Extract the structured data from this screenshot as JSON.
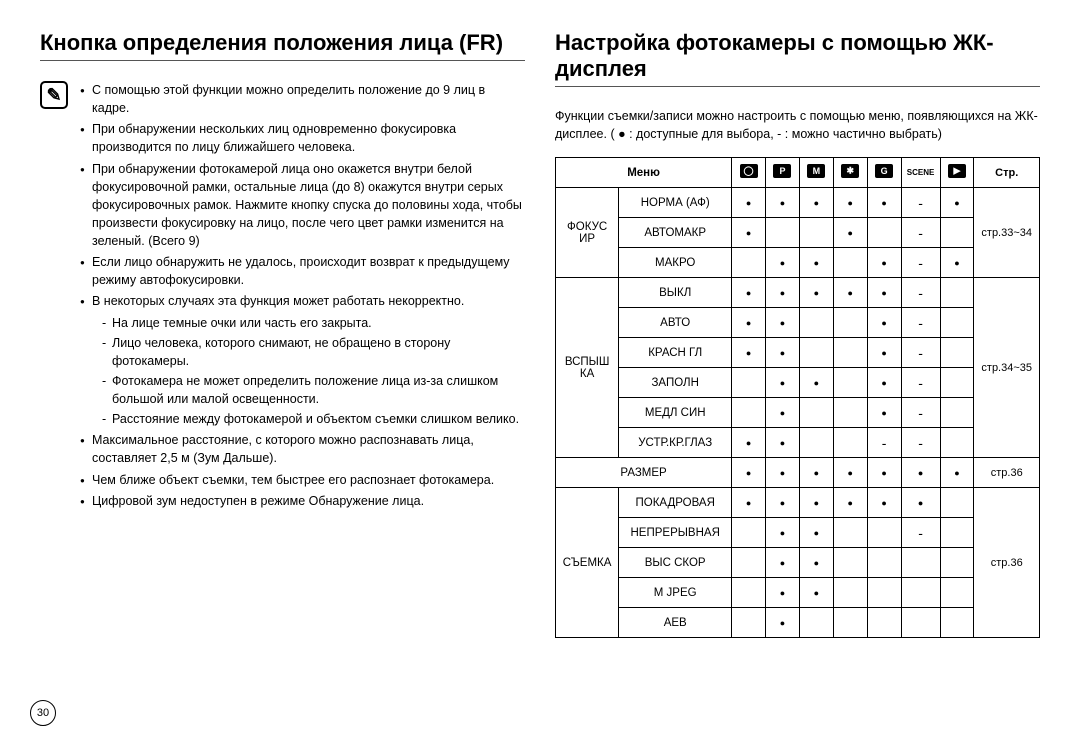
{
  "left": {
    "title": "Кнопка определения положения лица (FR)",
    "bullets": [
      "С помощью этой функции можно определить положение до 9 лиц в кадре.",
      "При обнаружении нескольких лиц одновременно фокусировка производится по лицу ближайшего человека.",
      "При обнаружении фотокамерой лица оно окажется внутри белой фокусировочной рамки, остальные лица (до 8) окажутся внутри серых фокусировочных рамок. Нажмите кнопку спуска до половины хода, чтобы произвести фокусировку на лицо, после чего цвет рамки изменится на зеленый. (Всего 9)",
      "Если лицо обнаружить не удалось, происходит возврат к предыдущему режиму автофокусировки.",
      "В некоторых случаях эта функция может работать некорректно.",
      "Максимальное расстояние, с которого можно распознавать лица, составляет 2,5 м (Зум Дальше).",
      "Чем ближе объект съемки, тем быстрее его распознает фотокамера.",
      "Цифровой зум недоступен в режиме Обнаружение лица."
    ],
    "sub_items": [
      "На лице темные очки или часть его закрыта.",
      "Лицо человека, которого снимают, не обращено в сторону фотокамеры.",
      "Фотокамера не может определить положение лица из-за слишком большой или малой освещенности.",
      "Расстояние между фотокамерой и объектом съемки слишком велико."
    ]
  },
  "right": {
    "title": "Настройка фотокамеры с помощью ЖК-дисплея",
    "intro": "Функции съемки/записи можно настроить с помощью меню, появляющихся на ЖК-дисплее.   ( ● : доступные для выбора, - : можно частично выбрать)",
    "headers": {
      "menu": "Меню",
      "page": "Стр.",
      "mode_glyphs": [
        "◯",
        "P",
        "M",
        "✱",
        "G",
        "SCENE",
        "▶"
      ]
    },
    "groups": [
      {
        "cat": "ФОКУС ИР",
        "page": "стр.33~34",
        "rows": [
          {
            "label": "НОРМА (АФ)",
            "m": [
              "d",
              "d",
              "d",
              "d",
              "d",
              "h",
              "d"
            ]
          },
          {
            "label": "АВТОМАКР",
            "m": [
              "d",
              "",
              "",
              "d",
              "",
              "h",
              ""
            ]
          },
          {
            "label": "МАКРО",
            "m": [
              "",
              "d",
              "d",
              "",
              "d",
              "h",
              "d"
            ]
          }
        ]
      },
      {
        "cat": "ВСПЫШ КА",
        "page": "стр.34~35",
        "rows": [
          {
            "label": "ВЫКЛ",
            "m": [
              "d",
              "d",
              "d",
              "d",
              "d",
              "h",
              ""
            ]
          },
          {
            "label": "АВТО",
            "m": [
              "d",
              "d",
              "",
              "",
              "d",
              "h",
              ""
            ]
          },
          {
            "label": "КРАСН ГЛ",
            "m": [
              "d",
              "d",
              "",
              "",
              "d",
              "h",
              ""
            ]
          },
          {
            "label": "ЗАПОЛН",
            "m": [
              "",
              "d",
              "d",
              "",
              "d",
              "h",
              ""
            ]
          },
          {
            "label": "МЕДЛ СИН",
            "m": [
              "",
              "d",
              "",
              "",
              "d",
              "h",
              ""
            ]
          },
          {
            "label": "УСТР.КР.ГЛАЗ",
            "m": [
              "d",
              "d",
              "",
              "",
              "h",
              "h",
              ""
            ]
          }
        ]
      },
      {
        "cat": "РАЗМЕР",
        "page": "стр.36",
        "single": true,
        "rows": [
          {
            "label": "",
            "m": [
              "d",
              "d",
              "d",
              "d",
              "d",
              "d",
              "d"
            ]
          }
        ]
      },
      {
        "cat": "СЪЕМКА",
        "page": "стр.36",
        "rows": [
          {
            "label": "ПОКАДРОВАЯ",
            "m": [
              "d",
              "d",
              "d",
              "d",
              "d",
              "d",
              ""
            ]
          },
          {
            "label": "НЕПРЕРЫВНАЯ",
            "m": [
              "",
              "d",
              "d",
              "",
              "",
              "h",
              ""
            ]
          },
          {
            "label": "ВЫС СКОР",
            "m": [
              "",
              "d",
              "d",
              "",
              "",
              "",
              ""
            ]
          },
          {
            "label": "M JPEG",
            "m": [
              "",
              "d",
              "d",
              "",
              "",
              "",
              ""
            ]
          },
          {
            "label": "AEB",
            "m": [
              "",
              "d",
              "",
              "",
              "",
              "",
              ""
            ]
          }
        ]
      }
    ]
  },
  "page_number": "30"
}
